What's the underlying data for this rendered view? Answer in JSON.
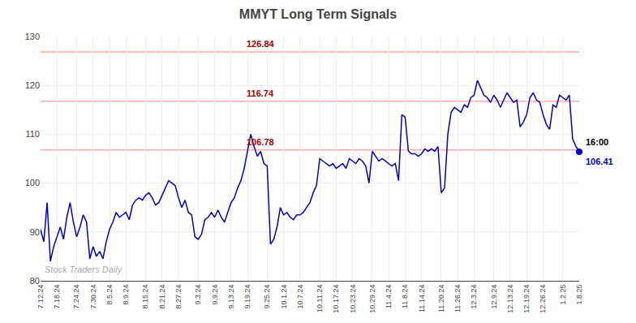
{
  "chart_data": {
    "type": "line",
    "title": "MMYT Long Term Signals",
    "categories": [
      "7.12.24",
      null,
      null,
      null,
      null,
      "7.18.24",
      null,
      null,
      null,
      null,
      null,
      "7.24.24",
      null,
      null,
      null,
      null,
      "7.30.24",
      null,
      null,
      null,
      null,
      "8.5.24",
      null,
      null,
      null,
      null,
      "8.9.24",
      null,
      null,
      null,
      null,
      null,
      "8.15.24",
      null,
      null,
      null,
      null,
      "8.21.24",
      null,
      null,
      null,
      null,
      "8.27.24",
      null,
      null,
      null,
      null,
      null,
      "9.3.24",
      null,
      null,
      null,
      null,
      "9.9.24",
      null,
      null,
      null,
      null,
      "9.13.24",
      null,
      null,
      null,
      null,
      "9.19.24",
      null,
      null,
      null,
      null,
      null,
      "9.25.24",
      null,
      null,
      null,
      null,
      "10.1.24",
      null,
      null,
      null,
      null,
      "10.7.24",
      null,
      null,
      null,
      null,
      null,
      "10.11.24",
      null,
      null,
      null,
      null,
      "10.17.24",
      null,
      null,
      null,
      null,
      "10.23.24",
      null,
      null,
      null,
      null,
      null,
      "10.29.24",
      null,
      null,
      null,
      null,
      "11.4.24",
      null,
      null,
      null,
      null,
      "11.8.24",
      null,
      null,
      null,
      null,
      "11.14.24",
      null,
      null,
      null,
      null,
      null,
      "11.20.24",
      null,
      null,
      null,
      null,
      "11.26.24",
      null,
      null,
      null,
      null,
      "12.3.24",
      null,
      null,
      null,
      null,
      null,
      "12.9.24",
      null,
      null,
      null,
      null,
      "12.13.24",
      null,
      null,
      null,
      null,
      "12.19.24",
      null,
      null,
      null,
      null,
      "12.26.24",
      null,
      null,
      null,
      null,
      null,
      "1.2.25",
      null,
      null,
      null,
      null,
      "1.8.25"
    ],
    "values": [
      90.5,
      88.0,
      96.0,
      84.0,
      87.0,
      89.0,
      91.0,
      88.5,
      93.0,
      96.0,
      92.0,
      89.0,
      91.0,
      93.5,
      92.0,
      84.5,
      87.0,
      85.0,
      86.0,
      84.5,
      88.0,
      90.5,
      92.0,
      94.0,
      93.0,
      93.5,
      94.0,
      92.5,
      95.5,
      96.5,
      97.0,
      96.5,
      97.5,
      98.0,
      97.0,
      95.5,
      96.0,
      97.5,
      99.0,
      100.5,
      100.0,
      99.5,
      97.0,
      95.0,
      96.5,
      94.0,
      93.5,
      89.0,
      88.5,
      89.5,
      92.5,
      93.0,
      94.0,
      93.0,
      94.5,
      93.0,
      92.0,
      94.0,
      96.0,
      97.0,
      99.0,
      100.5,
      103.0,
      106.5,
      110.0,
      107.5,
      105.5,
      106.5,
      104.0,
      103.5,
      87.5,
      88.5,
      91.0,
      95.0,
      93.5,
      94.0,
      93.0,
      92.5,
      93.5,
      93.5,
      94.0,
      95.0,
      96.0,
      98.0,
      99.5,
      105.0,
      104.5,
      104.0,
      103.5,
      104.0,
      103.0,
      103.5,
      104.0,
      103.0,
      105.0,
      104.5,
      104.0,
      105.0,
      104.5,
      103.5,
      100.0,
      106.5,
      105.5,
      104.5,
      105.0,
      104.5,
      104.0,
      103.5,
      104.0,
      100.5,
      114.0,
      113.5,
      106.5,
      106.0,
      106.0,
      105.5,
      106.0,
      107.0,
      106.5,
      107.0,
      106.5,
      107.5,
      98.0,
      99.0,
      110.0,
      114.5,
      115.5,
      115.0,
      114.5,
      116.0,
      115.5,
      117.5,
      118.0,
      121.0,
      119.5,
      118.0,
      117.5,
      116.5,
      118.0,
      117.0,
      115.5,
      117.0,
      118.5,
      117.5,
      116.5,
      117.0,
      111.5,
      112.5,
      114.0,
      117.5,
      118.5,
      117.0,
      116.5,
      114.0,
      112.0,
      111.0,
      116.0,
      115.5,
      118.0,
      117.5,
      117.0,
      118.0,
      109.0,
      107.5,
      106.41
    ],
    "color": "#0000cc",
    "marker": "circle",
    "ylim": [
      80,
      130
    ],
    "yticks": [
      80,
      90,
      100,
      110,
      120,
      130
    ],
    "grid": true,
    "hlines": [
      {
        "y": 126.84,
        "label": "126.84",
        "color": "#ffaaaa",
        "label_color": "#aa0000"
      },
      {
        "y": 116.74,
        "label": "116.74",
        "color": "#ffaaaa",
        "label_color": "#aa0000"
      },
      {
        "y": 106.78,
        "label": "106.78",
        "color": "#ffaaaa",
        "label_color": "#aa0000"
      }
    ],
    "annotations": [
      {
        "text": "Stock Traders Daily",
        "color": "#aaaaaa"
      },
      {
        "text": "16:00",
        "color": "#000000"
      },
      {
        "text": "106.41",
        "color": "#0000cc"
      }
    ]
  }
}
